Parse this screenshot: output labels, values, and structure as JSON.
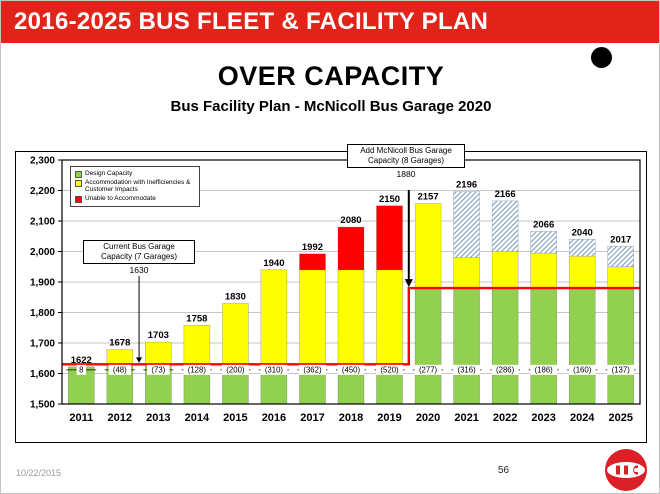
{
  "slide": {
    "banner_title": "2016-2025 BUS FLEET & FACILITY PLAN",
    "title": "OVER CAPACITY",
    "subtitle": "Bus Facility Plan - McNicoll Bus Garage 2020",
    "footer_date": "10/22/2015",
    "page_number": "56"
  },
  "colors": {
    "banner_red": "#e2231a",
    "bar_green": "#92d050",
    "bar_yellow": "#ffff00",
    "bar_red": "#ff0000",
    "hatch_blue": "#8ca8c8",
    "capacity_line": "#ff0000"
  },
  "chart_data": {
    "type": "bar",
    "stacked": true,
    "title": "OVER CAPACITY",
    "subtitle": "Bus Facility Plan - McNicoll Bus Garage 2020",
    "ylim": [
      1500,
      2300
    ],
    "grid": true,
    "yticks": [
      {
        "value": 1500,
        "label": "1,500"
      },
      {
        "value": 1600,
        "label": "1,600"
      },
      {
        "value": 1700,
        "label": "1,700"
      },
      {
        "value": 1800,
        "label": "1,800"
      },
      {
        "value": 1900,
        "label": "1,900"
      },
      {
        "value": 2000,
        "label": "2,000"
      },
      {
        "value": 2100,
        "label": "2,100"
      },
      {
        "value": 2200,
        "label": "2,200"
      },
      {
        "value": 2300,
        "label": "2,300"
      }
    ],
    "bars": [
      {
        "year": "2011",
        "green": 1622,
        "yellow": null,
        "red": null,
        "hatch": null,
        "total": 1622,
        "overage": "8"
      },
      {
        "year": "2012",
        "green": 1630,
        "yellow": 1678,
        "red": null,
        "hatch": null,
        "total": 1678,
        "overage": "(48)"
      },
      {
        "year": "2013",
        "green": 1630,
        "yellow": 1703,
        "red": null,
        "hatch": null,
        "total": 1703,
        "overage": "(73)"
      },
      {
        "year": "2014",
        "green": 1630,
        "yellow": 1758,
        "red": null,
        "hatch": null,
        "total": 1758,
        "overage": "(128)"
      },
      {
        "year": "2015",
        "green": 1630,
        "yellow": 1830,
        "red": null,
        "hatch": null,
        "total": 1830,
        "overage": "(200)"
      },
      {
        "year": "2016",
        "green": 1630,
        "yellow": 1940,
        "red": null,
        "hatch": null,
        "total": 1940,
        "overage": "(310)"
      },
      {
        "year": "2017",
        "green": 1630,
        "yellow": 1940,
        "red": 1992,
        "hatch": null,
        "total": 1992,
        "overage": "(362)"
      },
      {
        "year": "2018",
        "green": 1630,
        "yellow": 1940,
        "red": 2080,
        "hatch": null,
        "total": 2080,
        "overage": "(450)"
      },
      {
        "year": "2019",
        "green": 1630,
        "yellow": 1940,
        "red": 2150,
        "hatch": null,
        "total": 2150,
        "overage": "(520)"
      },
      {
        "year": "2020",
        "green": 1880,
        "yellow": 2157,
        "red": null,
        "hatch": null,
        "total": 2157,
        "overage": "(277)"
      },
      {
        "year": "2021",
        "green": 1880,
        "yellow": 1980,
        "red": null,
        "hatch": 2196,
        "total": 2196,
        "overage": "(316)"
      },
      {
        "year": "2022",
        "green": 1880,
        "yellow": 2000,
        "red": null,
        "hatch": 2166,
        "total": 2166,
        "overage": "(286)"
      },
      {
        "year": "2023",
        "green": 1880,
        "yellow": 1995,
        "red": null,
        "hatch": 2066,
        "total": 2066,
        "overage": "(186)"
      },
      {
        "year": "2024",
        "green": 1880,
        "yellow": 1985,
        "red": null,
        "hatch": 2040,
        "total": 2040,
        "overage": "(160)"
      },
      {
        "year": "2025",
        "green": 1880,
        "yellow": 1950,
        "red": null,
        "hatch": 2017,
        "total": 2017,
        "overage": "(137)"
      }
    ],
    "capacity_line": {
      "before_value": 1630,
      "after_value": 1880,
      "step_after_year": "2019",
      "step_index": 9
    },
    "legend": [
      {
        "label": "Design Capacity",
        "color_key": "bar_green"
      },
      {
        "label": "Accommodation with Inefficiencies & Customer Impacts",
        "color_key": "bar_yellow"
      },
      {
        "label": "Unable to Accommodate",
        "color_key": "bar_red"
      }
    ],
    "annotations": [
      {
        "id": "current",
        "lines": [
          "Current Bus Garage",
          "Capacity (7 Garages)"
        ],
        "value": "1630"
      },
      {
        "id": "add",
        "lines": [
          "Add McNicoll Bus Garage",
          "Capacity (8 Garages)"
        ],
        "value": "1880"
      }
    ]
  }
}
